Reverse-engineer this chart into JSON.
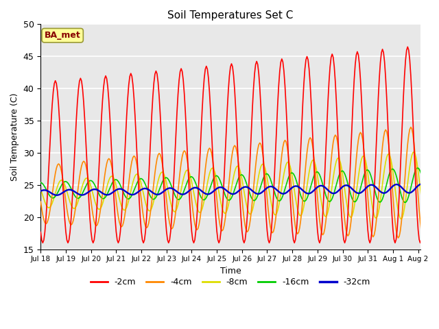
{
  "title": "Soil Temperatures Set C",
  "xlabel": "Time",
  "ylabel": "Soil Temperature (C)",
  "ylim": [
    15,
    50
  ],
  "background_color": "#ffffff",
  "plot_bg_color": "#e8e8e8",
  "series_colors": {
    "-2cm": "#ff0000",
    "-4cm": "#ff8800",
    "-8cm": "#dddd00",
    "-16cm": "#00cc00",
    "-32cm": "#0000cc"
  },
  "annotation_text": "BA_met",
  "annotation_bg": "#ffff99",
  "annotation_edge": "#999933",
  "annotation_text_color": "#880000",
  "x_ticks_labels": [
    "Jul 18",
    "Jul 19",
    "Jul 20",
    "Jul 21",
    "Jul 22",
    "Jul 23",
    "Jul 24",
    "Jul 25",
    "Jul 26",
    "Jul 27",
    "Jul 28",
    "Jul 29",
    "Jul 30",
    "Jul 31",
    "Aug 1",
    "Aug 2"
  ],
  "x_ticks_pos": [
    0,
    24,
    48,
    72,
    96,
    120,
    144,
    168,
    192,
    216,
    240,
    264,
    288,
    312,
    336,
    360
  ],
  "y_ticks": [
    15,
    20,
    25,
    30,
    35,
    40,
    45,
    50
  ],
  "grid_color": "#cccccc",
  "line_width": 1.2,
  "n_hours": 384,
  "base_temp": 24.0
}
